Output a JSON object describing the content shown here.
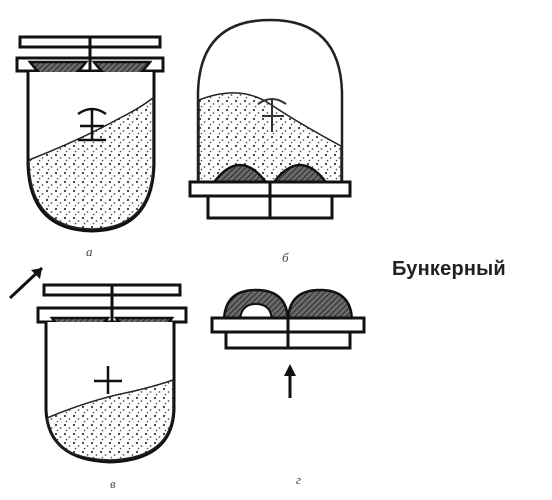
{
  "side_label": "Бункерный",
  "captions": {
    "a": "а",
    "b": "б",
    "c": "в",
    "d": "г"
  }
}
